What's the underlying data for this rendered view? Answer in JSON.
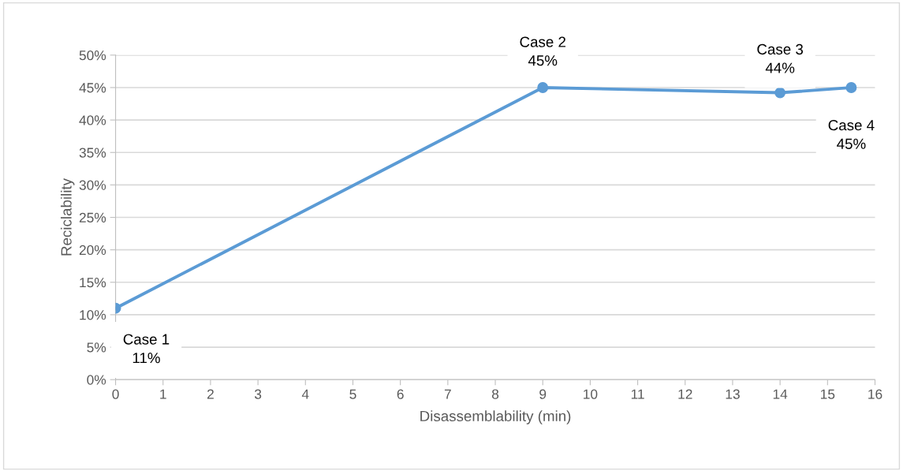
{
  "chart_data": {
    "type": "line",
    "xlabel": "Disassemblability (min)",
    "ylabel": "Reciclability",
    "x": [
      0,
      9,
      14,
      15.5
    ],
    "series": [
      {
        "color": "#5b9bd5",
        "values": [
          11,
          45,
          44.2,
          45
        ],
        "value_labels": [
          "Case 1\n11%",
          "Case 2\n45%",
          "Case 3\n44%",
          "Case 4\n45%"
        ]
      }
    ],
    "xlim": [
      0,
      16
    ],
    "xticks": [
      0,
      1,
      2,
      3,
      4,
      5,
      6,
      7,
      8,
      9,
      10,
      11,
      12,
      13,
      14,
      15,
      16
    ],
    "ylim": [
      0,
      50
    ],
    "yticks": [
      {
        "value": 0,
        "label": "0%"
      },
      {
        "value": 5,
        "label": "5%"
      },
      {
        "value": 10,
        "label": "10%"
      },
      {
        "value": 15,
        "label": "15%"
      },
      {
        "value": 20,
        "label": "20%"
      },
      {
        "value": 25,
        "label": "25%"
      },
      {
        "value": 30,
        "label": "30%"
      },
      {
        "value": 35,
        "label": "35%"
      },
      {
        "value": 40,
        "label": "40%"
      },
      {
        "value": 45,
        "label": "45%"
      },
      {
        "value": 50,
        "label": "50%"
      }
    ],
    "grid": "y",
    "marker": "circle",
    "line_style": "solid"
  }
}
